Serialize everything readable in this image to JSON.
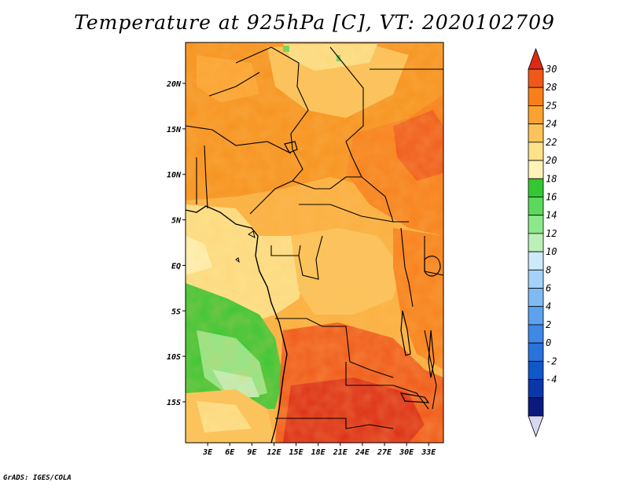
{
  "title": "Temperature at 925hPa [C], VT: 2020102709",
  "credit": "GrADS: IGES/COLA",
  "map": {
    "lon_range": [
      0,
      35
    ],
    "lat_range": [
      -19.5,
      24.5
    ],
    "lat_ticks": [
      {
        "value": 20,
        "label": "20N"
      },
      {
        "value": 15,
        "label": "15N"
      },
      {
        "value": 10,
        "label": "10N"
      },
      {
        "value": 5,
        "label": "5N"
      },
      {
        "value": 0,
        "label": "EQ"
      },
      {
        "value": -5,
        "label": "5S"
      },
      {
        "value": -10,
        "label": "10S"
      },
      {
        "value": -15,
        "label": "15S"
      }
    ],
    "lon_ticks": [
      {
        "value": 3,
        "label": "3E"
      },
      {
        "value": 6,
        "label": "6E"
      },
      {
        "value": 9,
        "label": "9E"
      },
      {
        "value": 12,
        "label": "12E"
      },
      {
        "value": 15,
        "label": "15E"
      },
      {
        "value": 18,
        "label": "18E"
      },
      {
        "value": 21,
        "label": "21E"
      },
      {
        "value": 24,
        "label": "24E"
      },
      {
        "value": 27,
        "label": "27E"
      },
      {
        "value": 30,
        "label": "30E"
      },
      {
        "value": 33,
        "label": "33E"
      }
    ]
  },
  "colorbar": {
    "levels": [
      "-4",
      "-2",
      "0",
      "2",
      "4",
      "6",
      "8",
      "10",
      "12",
      "14",
      "16",
      "18",
      "20",
      "22",
      "24",
      "25",
      "28",
      "30"
    ],
    "colors": [
      "#d8d8f2",
      "#0c1a7e",
      "#0b37a8",
      "#0f58c9",
      "#2a72dc",
      "#4088e6",
      "#5da2ee",
      "#7fbaf3",
      "#a5d2f8",
      "#cdeafb",
      "#bdf0b8",
      "#8ce88a",
      "#5cd85c",
      "#34c734",
      "#fff4b8",
      "#fde28a",
      "#fcc35a",
      "#fba330",
      "#f87f1a",
      "#f0581a",
      "#dc2a14"
    ]
  }
}
